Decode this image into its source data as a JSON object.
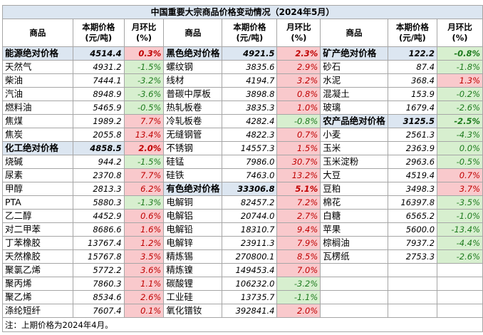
{
  "title": "中国重要大宗商品价格变动情况（2024年5月）",
  "headers": {
    "name": "商品",
    "price": "本期价格\n(元/吨)",
    "chg": "月环比\n(%)"
  },
  "columns": [
    {
      "rows": [
        {
          "name": "能源绝对价格",
          "price": "4514.4",
          "chg": "0.3%",
          "dir": "pos",
          "cat": true
        },
        {
          "name": "天然气",
          "price": "4931.2",
          "chg": "-1.5%",
          "dir": "neg"
        },
        {
          "name": "柴油",
          "price": "7444.1",
          "chg": "-3.2%",
          "dir": "neg"
        },
        {
          "name": "汽油",
          "price": "8948.9",
          "chg": "-3.6%",
          "dir": "neg"
        },
        {
          "name": "燃料油",
          "price": "5465.9",
          "chg": "-0.5%",
          "dir": "neg"
        },
        {
          "name": "焦煤",
          "price": "1989.2",
          "chg": "7.7%",
          "dir": "pos"
        },
        {
          "name": "焦炭",
          "price": "2055.8",
          "chg": "13.4%",
          "dir": "pos"
        },
        {
          "name": "化工绝对价格",
          "price": "4858.5",
          "chg": "2.0%",
          "dir": "pos",
          "cat": true
        },
        {
          "name": "烧碱",
          "price": "944.2",
          "chg": "-1.5%",
          "dir": "neg"
        },
        {
          "name": "尿素",
          "price": "2370.8",
          "chg": "7.7%",
          "dir": "pos"
        },
        {
          "name": "甲醇",
          "price": "2813.3",
          "chg": "6.2%",
          "dir": "pos"
        },
        {
          "name": "PTA",
          "price": "5880.3",
          "chg": "-1.3%",
          "dir": "neg"
        },
        {
          "name": "乙二醇",
          "price": "4452.9",
          "chg": "0.6%",
          "dir": "pos"
        },
        {
          "name": "对二甲苯",
          "price": "8686.6",
          "chg": "1.6%",
          "dir": "pos"
        },
        {
          "name": "丁苯橡胶",
          "price": "13767.4",
          "chg": "1.2%",
          "dir": "pos"
        },
        {
          "name": "天然橡胶",
          "price": "15767.8",
          "chg": "3.5%",
          "dir": "pos"
        },
        {
          "name": "聚氯乙烯",
          "price": "5772.2",
          "chg": "3.6%",
          "dir": "pos"
        },
        {
          "name": "聚丙烯",
          "price": "7860.3",
          "chg": "1.1%",
          "dir": "pos"
        },
        {
          "name": "聚乙烯",
          "price": "8534.6",
          "chg": "2.6%",
          "dir": "pos"
        },
        {
          "name": "涤纶短纤",
          "price": "7607.4",
          "chg": "0.1%",
          "dir": "pos"
        }
      ]
    },
    {
      "rows": [
        {
          "name": "黑色绝对价格",
          "price": "4921.5",
          "chg": "2.3%",
          "dir": "pos",
          "cat": true
        },
        {
          "name": "螺纹钢",
          "price": "3835.6",
          "chg": "2.9%",
          "dir": "pos"
        },
        {
          "name": "线材",
          "price": "4194.7",
          "chg": "3.2%",
          "dir": "pos"
        },
        {
          "name": "普碳中厚板",
          "price": "3898.8",
          "chg": "0.8%",
          "dir": "pos"
        },
        {
          "name": "热轧板卷",
          "price": "3835.3",
          "chg": "1.0%",
          "dir": "pos"
        },
        {
          "name": "冷轧板卷",
          "price": "4282.4",
          "chg": "-0.8%",
          "dir": "neg"
        },
        {
          "name": "无缝钢管",
          "price": "4822.3",
          "chg": "0.7%",
          "dir": "pos"
        },
        {
          "name": "不锈钢",
          "price": "14557.3",
          "chg": "1.5%",
          "dir": "pos"
        },
        {
          "name": "硅锰",
          "price": "7986.0",
          "chg": "30.7%",
          "dir": "pos"
        },
        {
          "name": "硅铁",
          "price": "7463.0",
          "chg": "13.2%",
          "dir": "pos"
        },
        {
          "name": "有色绝对价格",
          "price": "33306.8",
          "chg": "5.1%",
          "dir": "pos",
          "cat": true
        },
        {
          "name": "电解铜",
          "price": "82457.2",
          "chg": "7.2%",
          "dir": "pos"
        },
        {
          "name": "电解铝",
          "price": "20744.0",
          "chg": "2.7%",
          "dir": "pos"
        },
        {
          "name": "电解铅",
          "price": "18310.7",
          "chg": "9.4%",
          "dir": "pos"
        },
        {
          "name": "电解锌",
          "price": "23911.3",
          "chg": "7.9%",
          "dir": "pos"
        },
        {
          "name": "精炼锡",
          "price": "270800.1",
          "chg": "8.5%",
          "dir": "pos"
        },
        {
          "name": "精炼镍",
          "price": "149453.4",
          "chg": "7.0%",
          "dir": "pos"
        },
        {
          "name": "碳酸锂",
          "price": "106232.0",
          "chg": "-3.2%",
          "dir": "neg"
        },
        {
          "name": "工业硅",
          "price": "13735.7",
          "chg": "-1.1%",
          "dir": "neg"
        },
        {
          "name": "氧化镨钕",
          "price": "392841.4",
          "chg": "2.0%",
          "dir": "pos"
        }
      ]
    },
    {
      "rows": [
        {
          "name": "矿产绝对价格",
          "price": "122.2",
          "chg": "-0.8%",
          "dir": "neg",
          "cat": true
        },
        {
          "name": "砂石",
          "price": "87.4",
          "chg": "-1.8%",
          "dir": "neg"
        },
        {
          "name": "水泥",
          "price": "368.4",
          "chg": "1.3%",
          "dir": "pos"
        },
        {
          "name": "混凝土",
          "price": "153.9",
          "chg": "-0.2%",
          "dir": "neg"
        },
        {
          "name": "玻璃",
          "price": "1679.4",
          "chg": "-2.6%",
          "dir": "neg"
        },
        {
          "name": "农产品绝对价格",
          "price": "3125.5",
          "chg": "-2.5%",
          "dir": "neg",
          "cat": true
        },
        {
          "name": "小麦",
          "price": "2561.3",
          "chg": "-4.3%",
          "dir": "neg"
        },
        {
          "name": "玉米",
          "price": "2363.9",
          "chg": "0.0%",
          "dir": "neg"
        },
        {
          "name": "玉米淀粉",
          "price": "2963.6",
          "chg": "-0.5%",
          "dir": "neg"
        },
        {
          "name": "大豆",
          "price": "4519.4",
          "chg": "0.7%",
          "dir": "pos"
        },
        {
          "name": "豆粕",
          "price": "3498.3",
          "chg": "3.7%",
          "dir": "pos"
        },
        {
          "name": "棉花",
          "price": "16397.8",
          "chg": "-3.5%",
          "dir": "neg"
        },
        {
          "name": "白糖",
          "price": "6565.2",
          "chg": "-1.0%",
          "dir": "neg"
        },
        {
          "name": "苹果",
          "price": "5600.0",
          "chg": "-13.4%",
          "dir": "neg"
        },
        {
          "name": "棕榈油",
          "price": "7937.2",
          "chg": "-4.4%",
          "dir": "neg"
        },
        {
          "name": "瓦楞纸",
          "price": "2753.3",
          "chg": "-2.6%",
          "dir": "neg"
        },
        {
          "name": "",
          "price": "",
          "chg": "",
          "dir": "none"
        },
        {
          "name": "",
          "price": "",
          "chg": "",
          "dir": "none"
        },
        {
          "name": "",
          "price": "",
          "chg": "",
          "dir": "none"
        },
        {
          "name": "",
          "price": "",
          "chg": "",
          "dir": "none"
        }
      ]
    }
  ],
  "note": "注：上期价格为2024年4月。",
  "colors": {
    "category_bg": "#dce6f1",
    "up_bg": "#f9c9cc",
    "up_text": "#c00000",
    "down_bg": "#d7efcf",
    "down_text": "#1e7b1e"
  }
}
